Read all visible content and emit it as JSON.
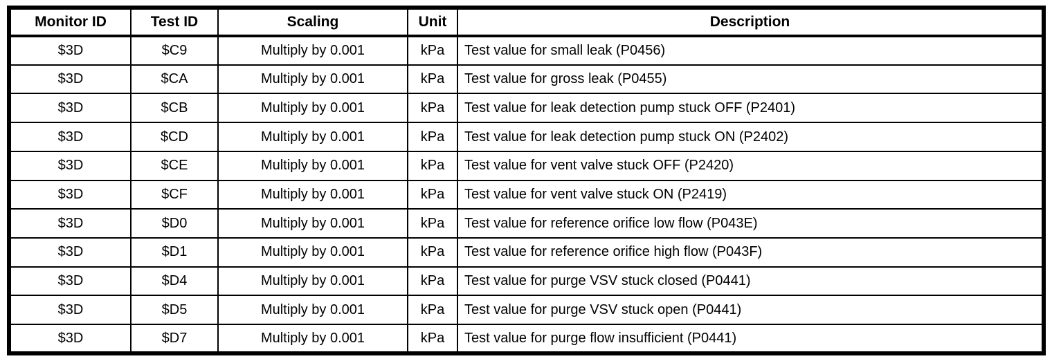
{
  "colors": {
    "background": "#ffffff",
    "border": "#000000",
    "text": "#000000"
  },
  "table": {
    "columns": [
      {
        "key": "monitor_id",
        "label": "Monitor ID"
      },
      {
        "key": "test_id",
        "label": "Test ID"
      },
      {
        "key": "scaling",
        "label": "Scaling"
      },
      {
        "key": "unit",
        "label": "Unit"
      },
      {
        "key": "description",
        "label": "Description"
      }
    ],
    "rows": [
      {
        "monitor_id": "$3D",
        "test_id": "$C9",
        "scaling": "Multiply by 0.001",
        "unit": "kPa",
        "description": "Test value for small leak (P0456)"
      },
      {
        "monitor_id": "$3D",
        "test_id": "$CA",
        "scaling": "Multiply by 0.001",
        "unit": "kPa",
        "description": "Test value for gross leak (P0455)"
      },
      {
        "monitor_id": "$3D",
        "test_id": "$CB",
        "scaling": "Multiply by 0.001",
        "unit": "kPa",
        "description": "Test value for leak detection pump stuck OFF (P2401)"
      },
      {
        "monitor_id": "$3D",
        "test_id": "$CD",
        "scaling": "Multiply by 0.001",
        "unit": "kPa",
        "description": "Test value for leak detection pump stuck ON (P2402)"
      },
      {
        "monitor_id": "$3D",
        "test_id": "$CE",
        "scaling": "Multiply by 0.001",
        "unit": "kPa",
        "description": "Test value for vent valve stuck OFF (P2420)"
      },
      {
        "monitor_id": "$3D",
        "test_id": "$CF",
        "scaling": "Multiply by 0.001",
        "unit": "kPa",
        "description": "Test value for vent valve stuck ON (P2419)"
      },
      {
        "monitor_id": "$3D",
        "test_id": "$D0",
        "scaling": "Multiply by 0.001",
        "unit": "kPa",
        "description": "Test value for reference orifice low flow (P043E)"
      },
      {
        "monitor_id": "$3D",
        "test_id": "$D1",
        "scaling": "Multiply by 0.001",
        "unit": "kPa",
        "description": "Test value for reference orifice high flow (P043F)"
      },
      {
        "monitor_id": "$3D",
        "test_id": "$D4",
        "scaling": "Multiply by 0.001",
        "unit": "kPa",
        "description": "Test value for purge VSV stuck closed (P0441)"
      },
      {
        "monitor_id": "$3D",
        "test_id": "$D5",
        "scaling": "Multiply by 0.001",
        "unit": "kPa",
        "description": "Test value for purge VSV stuck open (P0441)"
      },
      {
        "monitor_id": "$3D",
        "test_id": "$D7",
        "scaling": "Multiply by 0.001",
        "unit": "kPa",
        "description": "Test value for purge flow insufficient (P0441)"
      }
    ]
  }
}
